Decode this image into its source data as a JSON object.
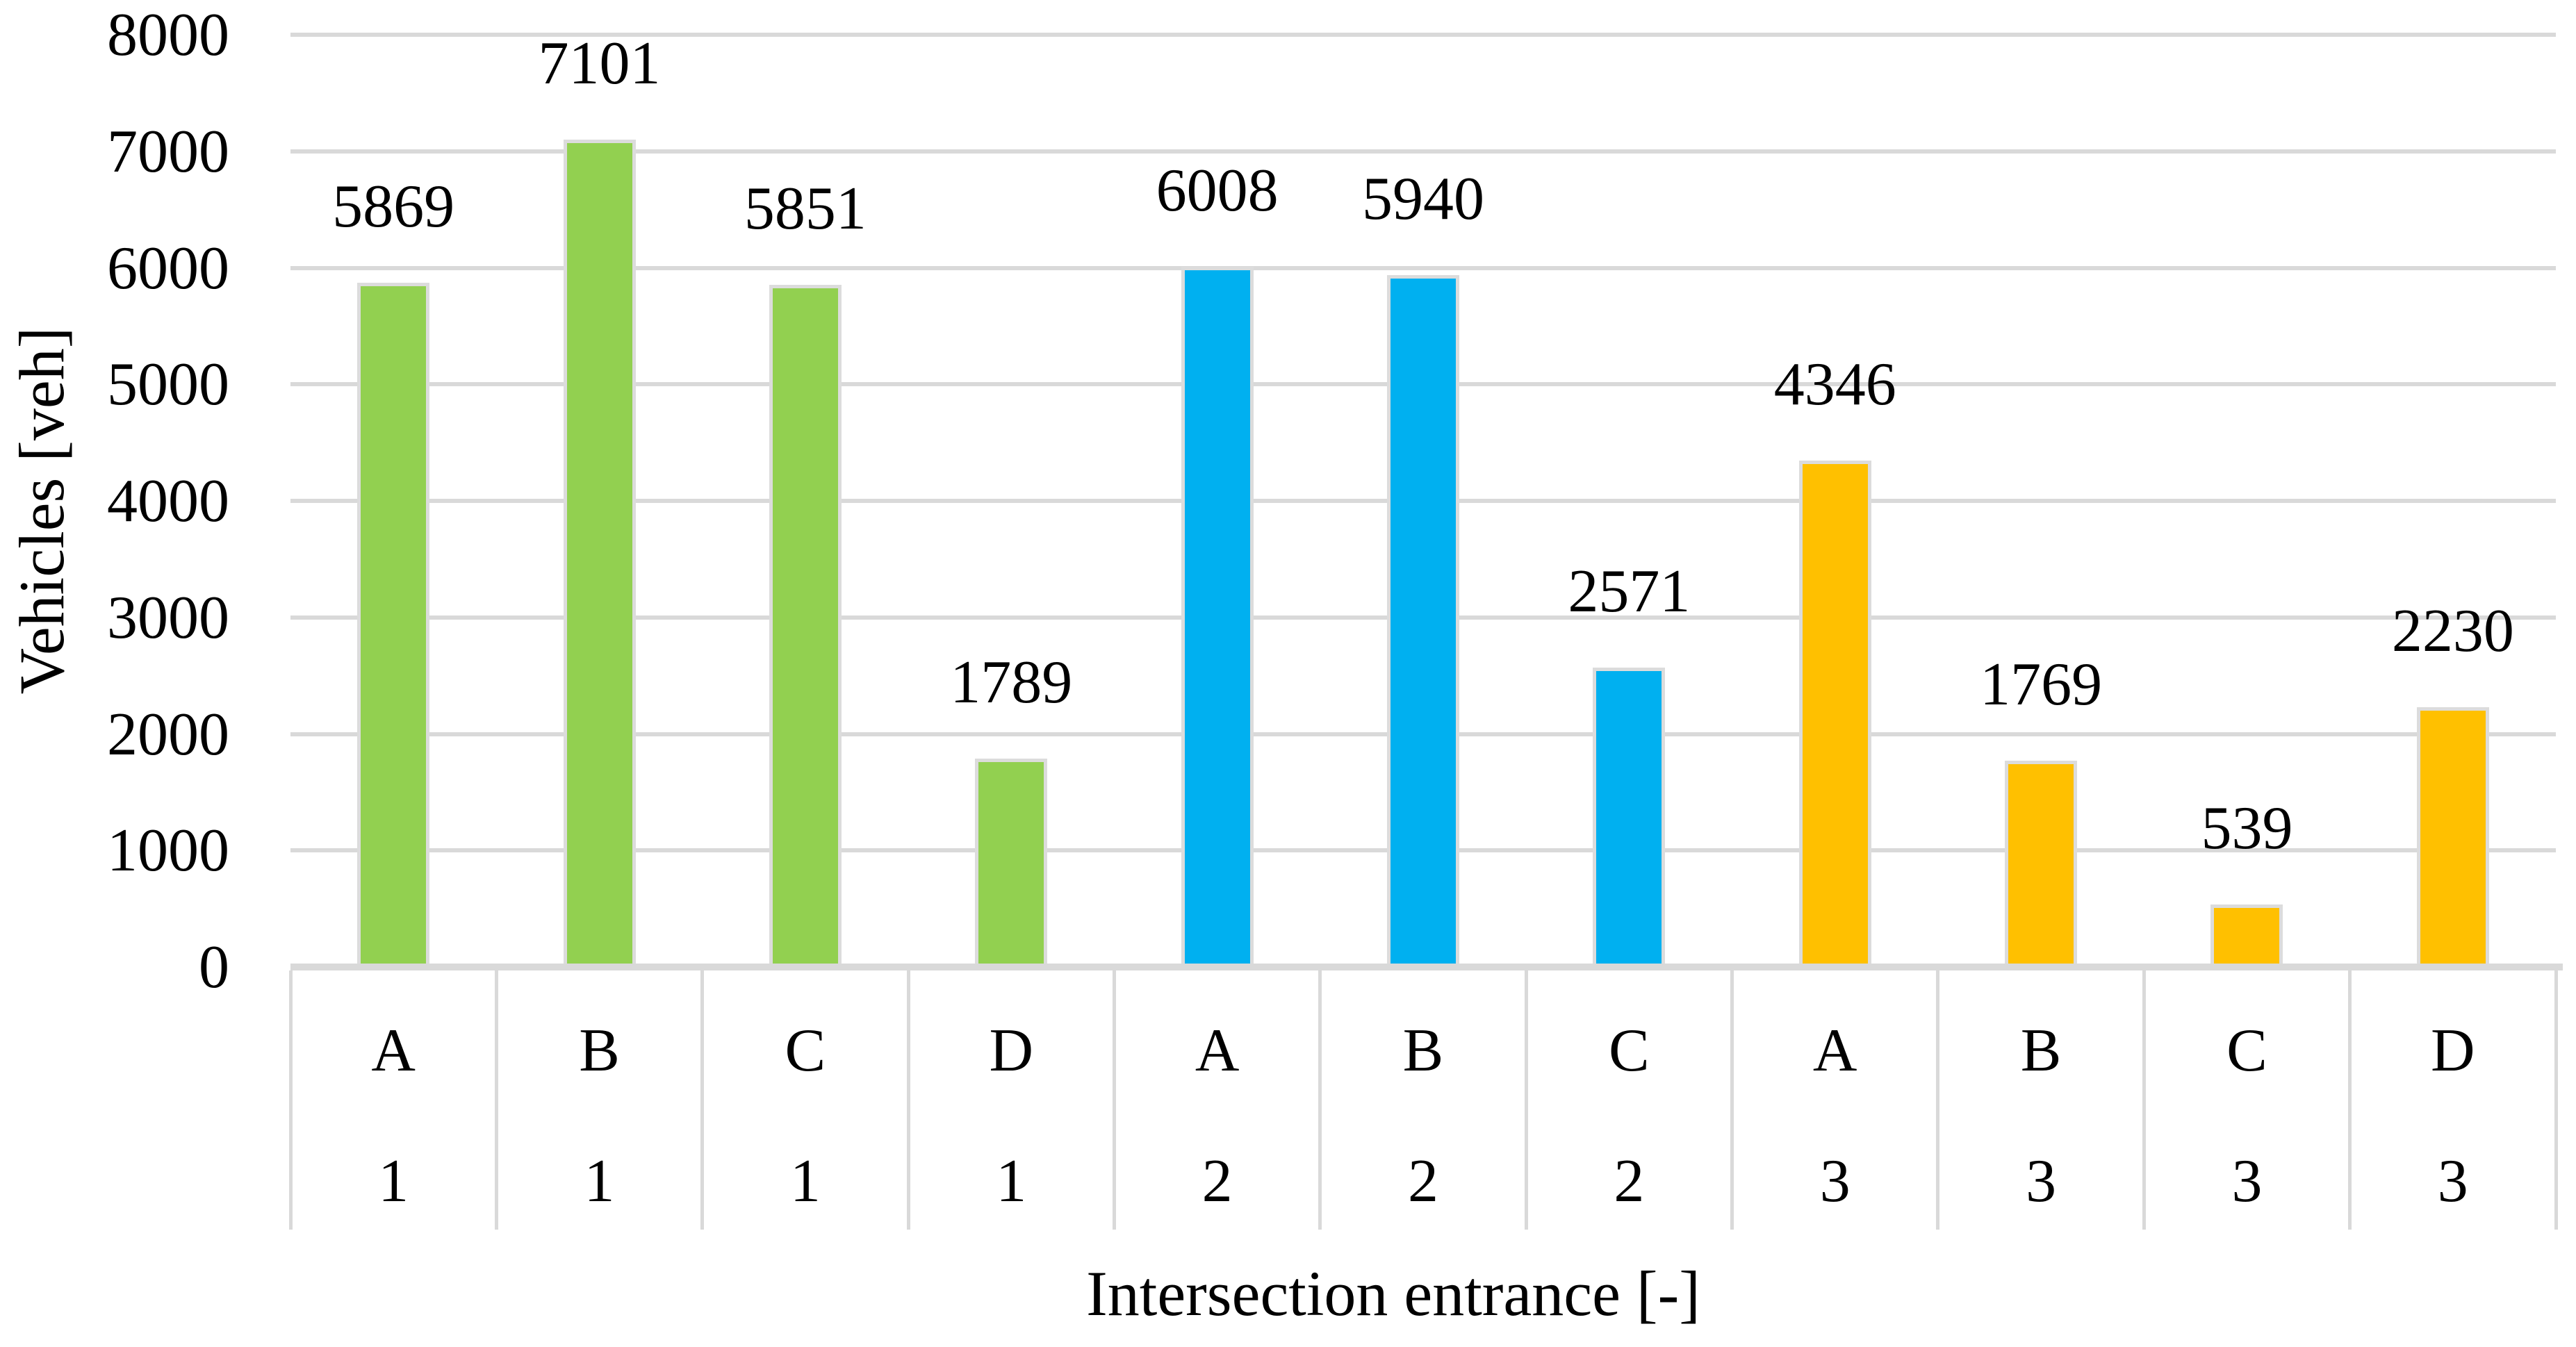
{
  "chart_data": {
    "type": "bar",
    "title": "",
    "xlabel": "Intersection entrance [-]",
    "ylabel": "Vehicles [veh]",
    "ylim": [
      0,
      8000
    ],
    "ytick_interval": 1000,
    "yticks": [
      8000,
      7000,
      6000,
      5000,
      4000,
      3000,
      2000,
      1000,
      0
    ],
    "grid": "horizontal",
    "legend_position": "none",
    "data_labels": "outside-end",
    "x_axis_levels": [
      "entrance-letter",
      "intersection-number"
    ],
    "groups": [
      {
        "intersection": "1",
        "color": "#92D050",
        "entrances": [
          "A",
          "B",
          "C",
          "D"
        ],
        "values": [
          5869,
          7101,
          5851,
          1789
        ]
      },
      {
        "intersection": "2",
        "color": "#00B0F0",
        "entrances": [
          "A",
          "B",
          "C"
        ],
        "values": [
          6008,
          5940,
          2571
        ]
      },
      {
        "intersection": "3",
        "color": "#FFC000",
        "entrances": [
          "A",
          "B",
          "C",
          "D"
        ],
        "values": [
          4346,
          1769,
          539,
          2230
        ]
      }
    ]
  },
  "colors": {
    "group_1_green": "#92D050",
    "group_2_blue": "#00B0F0",
    "group_3_orange": "#FFC000",
    "gridline": "#D9D9D9",
    "axis_line": "#D9D9D9",
    "bar_outline": "#DCDCDC",
    "text": "#000000",
    "background": "#FFFFFF"
  }
}
